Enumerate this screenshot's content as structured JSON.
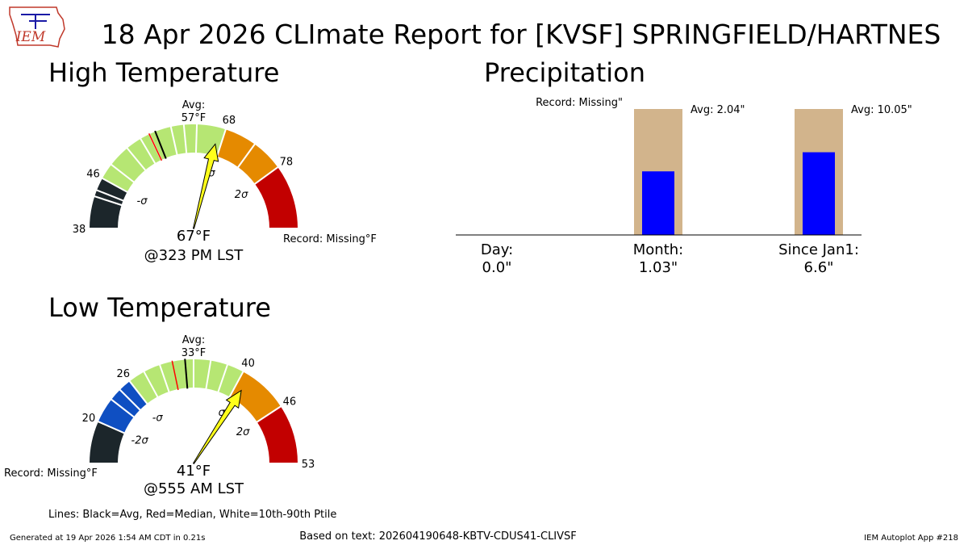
{
  "title": "18 Apr 2026 CLImate Report for [KVSF] SPRINGFIELD/HARTNES",
  "logo": {
    "text": "IEM",
    "icon": "iowa-state-outline-icon"
  },
  "colors": {
    "dark": "#1c262b",
    "blue": "#0f4fc2",
    "lightgreen": "#b6e673",
    "orange": "#e58a00",
    "red": "#c20000",
    "arrow": "#ffff1a",
    "precip_avg": "#d2b48c",
    "precip_obs": "#0000ff"
  },
  "chart_data": [
    {
      "type": "gauge",
      "name": "high-temperature",
      "title": "High Temperature",
      "range": [
        38,
        78
      ],
      "tick_values": [
        38,
        46,
        68,
        78
      ],
      "scale_max_value": 88,
      "segments": [
        {
          "from": 38,
          "to": 43,
          "color": "dark"
        },
        {
          "from": 43,
          "to": 46,
          "color": "dark"
        },
        {
          "from": 46,
          "to": 68,
          "color": "lightgreen"
        },
        {
          "from": 68,
          "to": 73,
          "color": "orange"
        },
        {
          "from": 73,
          "to": 78,
          "color": "orange"
        },
        {
          "from": 78,
          "to": 88,
          "color": "red"
        }
      ],
      "white_lines": [
        44,
        48.5,
        52,
        54.5,
        56,
        59.5,
        61.5,
        63.5
      ],
      "average": 57,
      "median": 56,
      "sigma_labels": [
        {
          "value": 46,
          "label": "-σ"
        },
        {
          "value": 68,
          "label": "σ"
        },
        {
          "value": 78,
          "label": "2σ"
        }
      ],
      "avg_label": "Avg:",
      "avg_value_label": "57°F",
      "observed": 67,
      "observed_label": "67°F",
      "time_label": "@323 PM LST",
      "record_label": "Record: Missing°F"
    },
    {
      "type": "gauge",
      "name": "low-temperature",
      "title": "Low Temperature",
      "range": [
        20,
        53
      ],
      "tick_values": [
        20,
        26,
        40,
        46,
        53
      ],
      "scale_min_value": 15,
      "segments": [
        {
          "from": 15,
          "to": 20,
          "color": "dark"
        },
        {
          "from": 20,
          "to": 23,
          "color": "blue"
        },
        {
          "from": 23,
          "to": 24.5,
          "color": "blue"
        },
        {
          "from": 24.5,
          "to": 26,
          "color": "blue"
        },
        {
          "from": 26,
          "to": 40,
          "color": "lightgreen"
        },
        {
          "from": 40,
          "to": 46,
          "color": "orange"
        },
        {
          "from": 46,
          "to": 53,
          "color": "red"
        }
      ],
      "white_lines": [
        28,
        30,
        34,
        36,
        38
      ],
      "average": 33,
      "median": 31.5,
      "sigma_labels": [
        {
          "value": 20,
          "label": "-2σ"
        },
        {
          "value": 26,
          "label": "-σ"
        },
        {
          "value": 40,
          "label": "σ"
        },
        {
          "value": 46,
          "label": "2σ"
        }
      ],
      "avg_label": "Avg:",
      "avg_value_label": "33°F",
      "observed": 41,
      "observed_label": "41°F",
      "time_label": "@555 AM LST",
      "record_label": "Record: Missing°F"
    },
    {
      "type": "bar",
      "name": "precipitation",
      "title": "Precipitation",
      "categories": [
        "Day:",
        "Month:",
        "Since Jan1:"
      ],
      "values": [
        0.0,
        1.03,
        6.6
      ],
      "value_labels": [
        "0.0\"",
        "1.03\"",
        "6.6\""
      ],
      "averages": [
        null,
        2.04,
        10.05
      ],
      "average_labels": [
        "Record: Missing\"",
        "Avg: 2.04\"",
        "Avg: 10.05\""
      ],
      "normalized_to_average": true
    }
  ],
  "legend_note": "Lines: Black=Avg, Red=Median, White=10th-90th Ptile",
  "footer": {
    "generated": "Generated at 19 Apr 2026 1:54 AM CDT in 0.21s",
    "based_on": "Based on text: 202604190648-KBTV-CDUS41-CLIVSF",
    "app": "IEM Autoplot App #218"
  }
}
